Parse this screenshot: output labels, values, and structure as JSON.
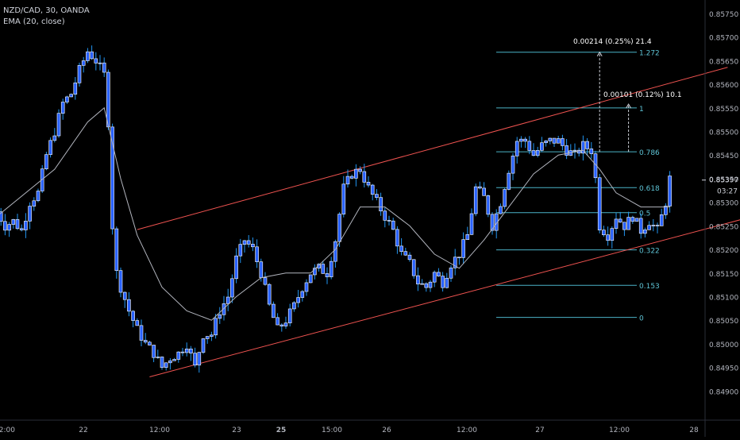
{
  "header": {
    "symbol_line": "NZD/CAD, 30, OANDA",
    "indicator_line": "EMA (20, close)"
  },
  "colors": {
    "background": "#000000",
    "candle": "#2962ff",
    "candle_outline": "#ffffff",
    "wick": "#2196f3",
    "ema": "#b2b5be",
    "channel": "#ef5350",
    "fib_line": "#4bb3c7",
    "fib_text": "#5ec4d6",
    "measure": "#d1d4dc",
    "axis_text": "#b2b5be"
  },
  "price_axis": {
    "labels": [
      "0.85750",
      "0.85700",
      "0.85650",
      "0.85600",
      "0.85550",
      "0.85500",
      "0.85450",
      "0.85397",
      "0.85350",
      "0.85300",
      "0.85250",
      "0.85200",
      "0.85150",
      "0.85100",
      "0.85050",
      "0.85000",
      "0.84950",
      "0.84900"
    ],
    "current_price": "0.85397",
    "countdown": "03:27"
  },
  "time_axis": {
    "labels": [
      "12:00",
      "22",
      "12:00",
      "23",
      "25",
      "15:00",
      "26",
      "12:00",
      "27",
      "12:00",
      "28"
    ]
  },
  "fibonacci": {
    "levels": [
      {
        "label": "1.272",
        "price": 0.85668
      },
      {
        "label": "1",
        "price": 0.8555
      },
      {
        "label": "0.786",
        "price": 0.85457
      },
      {
        "label": "0.618",
        "price": 0.85381
      },
      {
        "label": "0.5",
        "price": 0.85328
      },
      {
        "label": "0.322",
        "price": 0.85249
      },
      {
        "label": "0.153",
        "price": 0.85174
      },
      {
        "label": "0",
        "price": 0.85106
      }
    ]
  },
  "measurements": [
    {
      "text": "0.00214 (0.25%) 21.4"
    },
    {
      "text": "0.00101 (0.12%) 10.1"
    }
  ],
  "chart_data": {
    "type": "candlestick",
    "title": "NZD/CAD, 30, OANDA",
    "indicator": "EMA (20, close)",
    "ylim": [
      0.849,
      0.8578
    ],
    "y_ticks": [
      0.8575,
      0.857,
      0.8565,
      0.856,
      0.8555,
      0.855,
      0.8545,
      0.854,
      0.8535,
      0.853,
      0.8525,
      0.852,
      0.8515,
      0.851,
      0.8505,
      0.85,
      0.8495,
      0.849
    ],
    "close_path": [
      [
        0,
        0.8533
      ],
      [
        2,
        0.853
      ],
      [
        4,
        0.8531
      ],
      [
        6,
        0.8529
      ],
      [
        8,
        0.8535
      ],
      [
        10,
        0.8537
      ],
      [
        12,
        0.8545
      ],
      [
        14,
        0.855
      ],
      [
        16,
        0.8556
      ],
      [
        18,
        0.8558
      ],
      [
        20,
        0.8563
      ],
      [
        22,
        0.8567
      ],
      [
        24,
        0.8565
      ],
      [
        26,
        0.8562
      ],
      [
        27,
        0.8552
      ],
      [
        28,
        0.853
      ],
      [
        29,
        0.852
      ],
      [
        30,
        0.8517
      ],
      [
        32,
        0.8512
      ],
      [
        34,
        0.8508
      ],
      [
        36,
        0.8505
      ],
      [
        38,
        0.8503
      ],
      [
        40,
        0.85
      ],
      [
        42,
        0.8502
      ],
      [
        44,
        0.8503
      ],
      [
        46,
        0.8505
      ],
      [
        48,
        0.85
      ],
      [
        50,
        0.8507
      ],
      [
        52,
        0.8507
      ],
      [
        54,
        0.8512
      ],
      [
        56,
        0.8515
      ],
      [
        58,
        0.8523
      ],
      [
        60,
        0.8527
      ],
      [
        62,
        0.8525
      ],
      [
        64,
        0.852
      ],
      [
        66,
        0.8513
      ],
      [
        68,
        0.8508
      ],
      [
        70,
        0.851
      ],
      [
        72,
        0.8513
      ],
      [
        74,
        0.8517
      ],
      [
        76,
        0.852
      ],
      [
        78,
        0.8521
      ],
      [
        80,
        0.852
      ],
      [
        82,
        0.8527
      ],
      [
        84,
        0.8538
      ],
      [
        86,
        0.8541
      ],
      [
        88,
        0.8542
      ],
      [
        90,
        0.8538
      ],
      [
        92,
        0.8535
      ],
      [
        94,
        0.8532
      ],
      [
        96,
        0.8529
      ],
      [
        98,
        0.8524
      ],
      [
        100,
        0.8522
      ],
      [
        102,
        0.8518
      ],
      [
        104,
        0.8517
      ],
      [
        106,
        0.852
      ],
      [
        108,
        0.8518
      ],
      [
        110,
        0.8522
      ],
      [
        112,
        0.8524
      ],
      [
        114,
        0.8528
      ],
      [
        116,
        0.8538
      ],
      [
        118,
        0.8536
      ],
      [
        120,
        0.853
      ],
      [
        122,
        0.8535
      ],
      [
        124,
        0.8542
      ],
      [
        126,
        0.8548
      ],
      [
        128,
        0.8548
      ],
      [
        130,
        0.8545
      ],
      [
        132,
        0.8547
      ],
      [
        134,
        0.8548
      ],
      [
        136,
        0.8548
      ],
      [
        138,
        0.8546
      ],
      [
        140,
        0.8545
      ],
      [
        142,
        0.8547
      ],
      [
        144,
        0.8546
      ],
      [
        145,
        0.854
      ],
      [
        146,
        0.853
      ],
      [
        148,
        0.8528
      ],
      [
        150,
        0.8532
      ],
      [
        152,
        0.853
      ],
      [
        154,
        0.8532
      ],
      [
        156,
        0.8529
      ],
      [
        158,
        0.8531
      ],
      [
        160,
        0.8529
      ],
      [
        162,
        0.8535
      ],
      [
        163,
        0.854
      ]
    ],
    "ema_path": [
      [
        0,
        0.8532
      ],
      [
        14,
        0.8542
      ],
      [
        22,
        0.8552
      ],
      [
        26,
        0.8555
      ],
      [
        30,
        0.854
      ],
      [
        34,
        0.8528
      ],
      [
        40,
        0.8517
      ],
      [
        46,
        0.8512
      ],
      [
        52,
        0.851
      ],
      [
        58,
        0.8515
      ],
      [
        64,
        0.8519
      ],
      [
        70,
        0.852
      ],
      [
        76,
        0.852
      ],
      [
        82,
        0.8525
      ],
      [
        88,
        0.8534
      ],
      [
        94,
        0.8534
      ],
      [
        100,
        0.853
      ],
      [
        106,
        0.8524
      ],
      [
        112,
        0.8521
      ],
      [
        118,
        0.8527
      ],
      [
        124,
        0.8534
      ],
      [
        130,
        0.8541
      ],
      [
        136,
        0.8545
      ],
      [
        142,
        0.8546
      ],
      [
        146,
        0.8542
      ],
      [
        150,
        0.8537
      ],
      [
        156,
        0.8534
      ],
      [
        163,
        0.8534
      ]
    ],
    "channel": {
      "upper": [
        [
          34,
          0.85292
        ],
        [
          177,
          0.85636
        ]
      ],
      "lower": [
        [
          37,
          0.8498
        ],
        [
          181,
          0.85315
        ]
      ]
    }
  }
}
